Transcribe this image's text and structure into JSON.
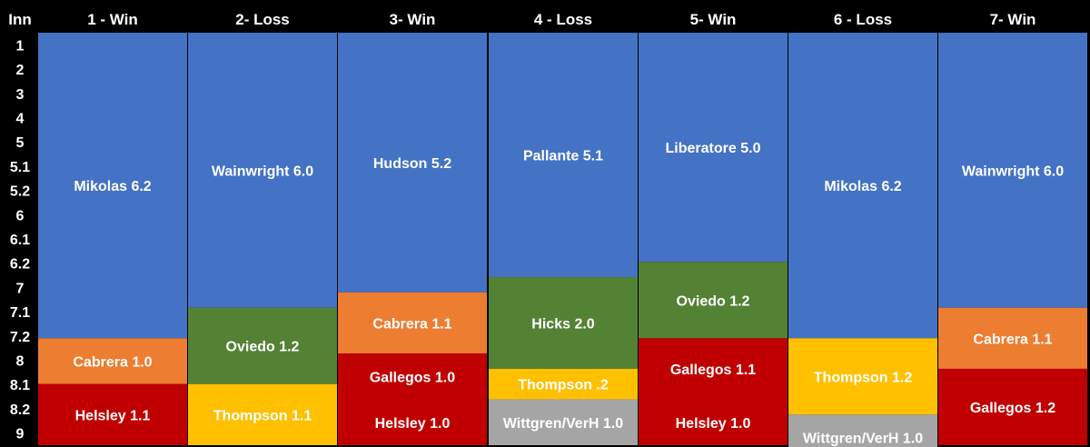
{
  "chart_data": {
    "type": "bar",
    "stacked": true,
    "orientation": "vertical-stacked-by-inning",
    "y_axis_title": "Inn",
    "y_ticks": [
      "1",
      "2",
      "3",
      "4",
      "5",
      "5.1",
      "5.2",
      "6",
      "6.1",
      "6.2",
      "7",
      "7.1",
      "7.2",
      "8",
      "8.1",
      "8.2",
      "9"
    ],
    "outs_range": [
      0,
      27
    ],
    "colors": {
      "blue": "#4472C4",
      "orange": "#ED7D31",
      "green": "#548235",
      "yellow": "#FFC000",
      "red": "#C00000",
      "gray": "#A5A5A5",
      "background": "#000000"
    },
    "games": [
      {
        "label": "1 - Win",
        "segments": [
          {
            "label": "Mikolas 6.2",
            "outs": 20,
            "color": "blue"
          },
          {
            "label": "Cabrera 1.0",
            "outs": 3,
            "color": "orange"
          },
          {
            "label": "Helsley 1.1",
            "outs": 4,
            "color": "red"
          }
        ]
      },
      {
        "label": "2- Loss",
        "segments": [
          {
            "label": "Wainwright 6.0",
            "outs": 18,
            "color": "blue"
          },
          {
            "label": "Oviedo 1.2",
            "outs": 5,
            "color": "green"
          },
          {
            "label": "Thompson 1.1",
            "outs": 4,
            "color": "yellow"
          }
        ]
      },
      {
        "label": "3- Win",
        "segments": [
          {
            "label": "Hudson 5.2",
            "outs": 17,
            "color": "blue"
          },
          {
            "label": "Cabrera 1.1",
            "outs": 4,
            "color": "orange"
          },
          {
            "label": "Gallegos 1.0",
            "outs": 3,
            "color": "red"
          },
          {
            "label": "Helsley 1.0",
            "outs": 3,
            "color": "red"
          }
        ]
      },
      {
        "label": "4 - Loss",
        "segments": [
          {
            "label": "Pallante 5.1",
            "outs": 16,
            "color": "blue"
          },
          {
            "label": "Hicks 2.0",
            "outs": 6,
            "color": "green"
          },
          {
            "label": "Thompson .2",
            "outs": 2,
            "color": "yellow"
          },
          {
            "label": "Wittgren/VerH 1.0",
            "outs": 3,
            "color": "gray"
          }
        ]
      },
      {
        "label": "5- Win",
        "segments": [
          {
            "label": "Liberatore 5.0",
            "outs": 15,
            "color": "blue"
          },
          {
            "label": "Oviedo 1.2",
            "outs": 5,
            "color": "green"
          },
          {
            "label": "Gallegos 1.1",
            "outs": 4,
            "color": "red"
          },
          {
            "label": "Helsley 1.0",
            "outs": 3,
            "color": "red"
          }
        ]
      },
      {
        "label": "6 - Loss",
        "segments": [
          {
            "label": "Mikolas 6.2",
            "outs": 20,
            "color": "blue"
          },
          {
            "label": "Thompson 1.2",
            "outs": 5,
            "color": "yellow"
          },
          {
            "label": "Wittgren/VerH 1.0",
            "outs": 3,
            "color": "gray"
          }
        ]
      },
      {
        "label": "7- Win",
        "segments": [
          {
            "label": "Wainwright 6.0",
            "outs": 18,
            "color": "blue"
          },
          {
            "label": "Cabrera 1.1",
            "outs": 4,
            "color": "orange"
          },
          {
            "label": "Gallegos 1.2",
            "outs": 5,
            "color": "red"
          }
        ]
      }
    ]
  }
}
